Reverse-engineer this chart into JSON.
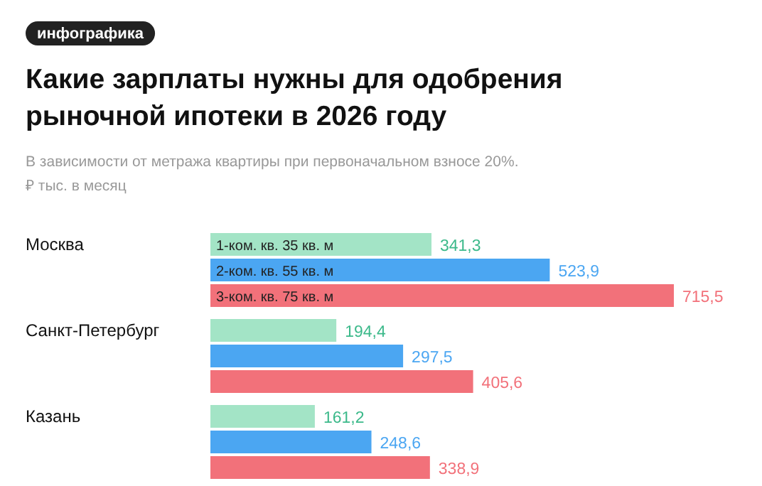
{
  "chart_data": {
    "type": "bar",
    "orientation": "horizontal",
    "title": "Какие зарплаты нужны для одобрения рыночной ипотеки в 2026 году",
    "subtitle": "В зависимости от метража квартиры при первоначальном взносе 20%.\n₽ тыс. в месяц",
    "annotations": [
      "инфографика"
    ],
    "categories": [
      "Москва",
      "Санкт-Петербург",
      "Казань"
    ],
    "series": [
      {
        "name": "1-ком. кв. 35 кв. м",
        "color": "#a3e4c6",
        "values": [
          341.3,
          194.4,
          161.2
        ],
        "value_labels": [
          "341,3",
          "194,4",
          "161,2"
        ]
      },
      {
        "name": "2-ком. кв. 55 кв. м",
        "color": "#4ba6f2",
        "values": [
          523.9,
          297.5,
          248.6
        ],
        "value_labels": [
          "523,9",
          "297,5",
          "248,6"
        ]
      },
      {
        "name": "3-ком. кв. 75 кв. м",
        "color": "#f2717a",
        "values": [
          715.5,
          405.6,
          338.9
        ],
        "value_labels": [
          "715,5",
          "405,6",
          "338,9"
        ]
      }
    ]
  }
}
